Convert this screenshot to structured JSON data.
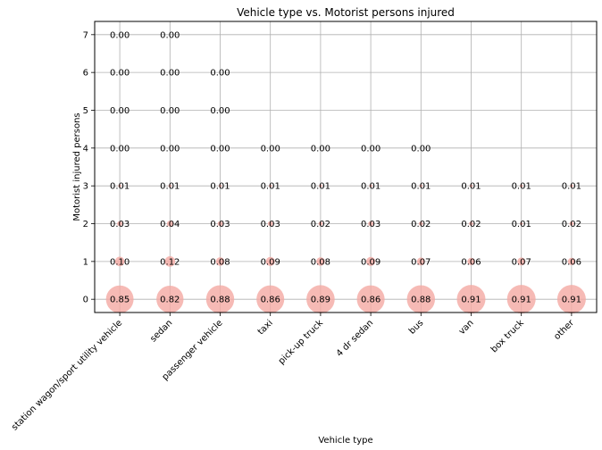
{
  "chart_data": {
    "type": "scatter",
    "title": "Vehicle type vs. Motorist persons injured",
    "xlabel": "Vehicle type",
    "ylabel": "Motorist injured persons",
    "categories": [
      "station wagon/sport utility vehicle",
      "sedan",
      "passenger vehicle",
      "taxi",
      "pick-up truck",
      "4 dr sedan",
      "bus",
      "van",
      "box truck",
      "other"
    ],
    "y_ticks": [
      0,
      1,
      2,
      3,
      4,
      5,
      6,
      7
    ],
    "ylim": [
      -0.35,
      7.35
    ],
    "grid": true,
    "marker_color": "#f4a9a2",
    "points": [
      {
        "cat": 0,
        "y": 0,
        "label": "0.85",
        "v": 0.85
      },
      {
        "cat": 0,
        "y": 1,
        "label": "0.10",
        "v": 0.1
      },
      {
        "cat": 0,
        "y": 2,
        "label": "0.03",
        "v": 0.03
      },
      {
        "cat": 0,
        "y": 3,
        "label": "0.01",
        "v": 0.01
      },
      {
        "cat": 0,
        "y": 4,
        "label": "0.00",
        "v": 0.0
      },
      {
        "cat": 0,
        "y": 5,
        "label": "0.00",
        "v": 0.0
      },
      {
        "cat": 0,
        "y": 6,
        "label": "0.00",
        "v": 0.0
      },
      {
        "cat": 0,
        "y": 7,
        "label": "0.00",
        "v": 0.0
      },
      {
        "cat": 1,
        "y": 0,
        "label": "0.82",
        "v": 0.82
      },
      {
        "cat": 1,
        "y": 1,
        "label": "0.12",
        "v": 0.12
      },
      {
        "cat": 1,
        "y": 2,
        "label": "0.04",
        "v": 0.04
      },
      {
        "cat": 1,
        "y": 3,
        "label": "0.01",
        "v": 0.01
      },
      {
        "cat": 1,
        "y": 4,
        "label": "0.00",
        "v": 0.0
      },
      {
        "cat": 1,
        "y": 5,
        "label": "0.00",
        "v": 0.0
      },
      {
        "cat": 1,
        "y": 6,
        "label": "0.00",
        "v": 0.0
      },
      {
        "cat": 1,
        "y": 7,
        "label": "0.00",
        "v": 0.0
      },
      {
        "cat": 2,
        "y": 0,
        "label": "0.88",
        "v": 0.88
      },
      {
        "cat": 2,
        "y": 1,
        "label": "0.08",
        "v": 0.08
      },
      {
        "cat": 2,
        "y": 2,
        "label": "0.03",
        "v": 0.03
      },
      {
        "cat": 2,
        "y": 3,
        "label": "0.01",
        "v": 0.01
      },
      {
        "cat": 2,
        "y": 4,
        "label": "0.00",
        "v": 0.0
      },
      {
        "cat": 2,
        "y": 5,
        "label": "0.00",
        "v": 0.0
      },
      {
        "cat": 2,
        "y": 6,
        "label": "0.00",
        "v": 0.0
      },
      {
        "cat": 3,
        "y": 0,
        "label": "0.86",
        "v": 0.86
      },
      {
        "cat": 3,
        "y": 1,
        "label": "0.09",
        "v": 0.09
      },
      {
        "cat": 3,
        "y": 2,
        "label": "0.03",
        "v": 0.03
      },
      {
        "cat": 3,
        "y": 3,
        "label": "0.01",
        "v": 0.01
      },
      {
        "cat": 3,
        "y": 4,
        "label": "0.00",
        "v": 0.0
      },
      {
        "cat": 4,
        "y": 0,
        "label": "0.89",
        "v": 0.89
      },
      {
        "cat": 4,
        "y": 1,
        "label": "0.08",
        "v": 0.08
      },
      {
        "cat": 4,
        "y": 2,
        "label": "0.02",
        "v": 0.02
      },
      {
        "cat": 4,
        "y": 3,
        "label": "0.01",
        "v": 0.01
      },
      {
        "cat": 4,
        "y": 4,
        "label": "0.00",
        "v": 0.0
      },
      {
        "cat": 5,
        "y": 0,
        "label": "0.86",
        "v": 0.86
      },
      {
        "cat": 5,
        "y": 1,
        "label": "0.09",
        "v": 0.09
      },
      {
        "cat": 5,
        "y": 2,
        "label": "0.03",
        "v": 0.03
      },
      {
        "cat": 5,
        "y": 3,
        "label": "0.01",
        "v": 0.01
      },
      {
        "cat": 5,
        "y": 4,
        "label": "0.00",
        "v": 0.0
      },
      {
        "cat": 6,
        "y": 0,
        "label": "0.88",
        "v": 0.88
      },
      {
        "cat": 6,
        "y": 1,
        "label": "0.07",
        "v": 0.07
      },
      {
        "cat": 6,
        "y": 2,
        "label": "0.02",
        "v": 0.02
      },
      {
        "cat": 6,
        "y": 3,
        "label": "0.01",
        "v": 0.01
      },
      {
        "cat": 6,
        "y": 4,
        "label": "0.00",
        "v": 0.0
      },
      {
        "cat": 7,
        "y": 0,
        "label": "0.91",
        "v": 0.91
      },
      {
        "cat": 7,
        "y": 1,
        "label": "0.06",
        "v": 0.06
      },
      {
        "cat": 7,
        "y": 2,
        "label": "0.02",
        "v": 0.02
      },
      {
        "cat": 7,
        "y": 3,
        "label": "0.01",
        "v": 0.01
      },
      {
        "cat": 8,
        "y": 0,
        "label": "0.91",
        "v": 0.91
      },
      {
        "cat": 8,
        "y": 1,
        "label": "0.07",
        "v": 0.07
      },
      {
        "cat": 8,
        "y": 2,
        "label": "0.01",
        "v": 0.01
      },
      {
        "cat": 8,
        "y": 3,
        "label": "0.01",
        "v": 0.01
      },
      {
        "cat": 9,
        "y": 0,
        "label": "0.91",
        "v": 0.91
      },
      {
        "cat": 9,
        "y": 1,
        "label": "0.06",
        "v": 0.06
      },
      {
        "cat": 9,
        "y": 2,
        "label": "0.02",
        "v": 0.02
      },
      {
        "cat": 9,
        "y": 3,
        "label": "0.01",
        "v": 0.01
      }
    ]
  }
}
